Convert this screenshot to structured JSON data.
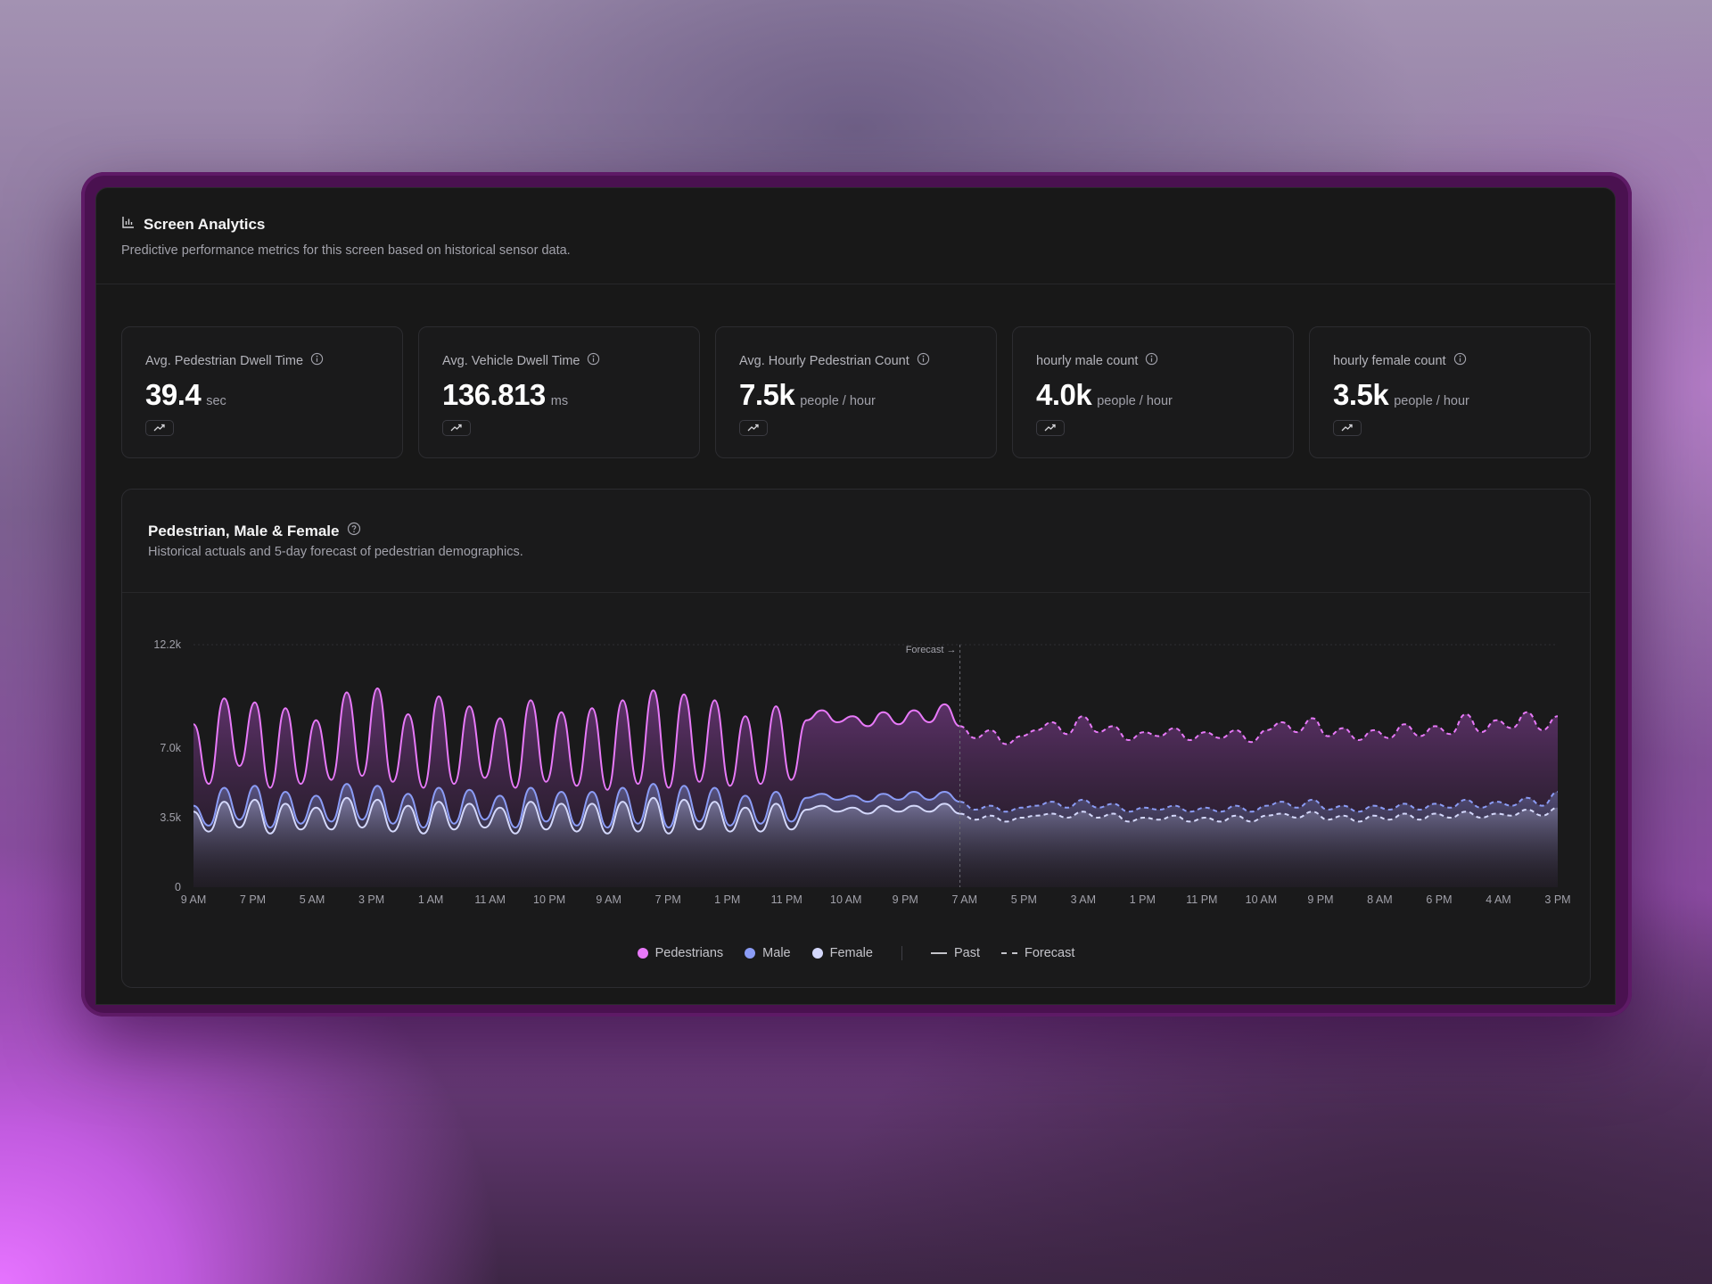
{
  "app": {
    "title": "Screen Analytics",
    "subtitle": "Predictive performance metrics for this screen based on historical sensor data."
  },
  "kpis": [
    {
      "label": "Avg. Pedestrian Dwell Time",
      "value": "39.4",
      "unit": "sec",
      "trend_icon": "trending-up-icon"
    },
    {
      "label": "Avg. Vehicle Dwell Time",
      "value": "136.813",
      "unit": "ms",
      "trend_icon": "trending-up-icon"
    },
    {
      "label": "Avg. Hourly Pedestrian Count",
      "value": "7.5k",
      "unit": "people / hour",
      "trend_icon": "trending-up-icon"
    },
    {
      "label": "hourly male count",
      "value": "4.0k",
      "unit": "people / hour",
      "trend_icon": "trending-up-icon"
    },
    {
      "label": "hourly female count",
      "value": "3.5k",
      "unit": "people / hour",
      "trend_icon": "trending-up-icon"
    }
  ],
  "chart": {
    "title": "Pedestrian, Male & Female",
    "subtitle": "Historical actuals and 5-day forecast of pedestrian demographics.",
    "forecast_marker": "Forecast →",
    "legend": {
      "pedestrians": "Pedestrians",
      "male": "Male",
      "female": "Female",
      "past": "Past",
      "forecast": "Forecast"
    }
  },
  "colors": {
    "pedestrians": "#e879f9",
    "male": "#8b9cf6",
    "female": "#d4d8fb",
    "background": "#181818",
    "card_border": "#2c2c30"
  },
  "chart_data": {
    "type": "area",
    "title": "Pedestrian, Male & Female",
    "ylim": [
      0,
      12200
    ],
    "y_ticks": [
      "0",
      "3.5k",
      "7.0k",
      "12.2k"
    ],
    "x_ticks": [
      "9 AM",
      "7 PM",
      "5 AM",
      "3 PM",
      "1 AM",
      "11 AM",
      "10 PM",
      "9 AM",
      "7 PM",
      "1 PM",
      "11 PM",
      "10 AM",
      "9 PM",
      "7 AM",
      "5 PM",
      "3 AM",
      "1 PM",
      "11 PM",
      "10 AM",
      "9 PM",
      "8 AM",
      "6 PM",
      "4 AM",
      "3 PM"
    ],
    "forecast_start_index": 50,
    "series": [
      {
        "name": "Pedestrians",
        "color": "#e879f9",
        "values": [
          8200,
          5200,
          9500,
          6100,
          9300,
          5000,
          9000,
          5200,
          8400,
          5400,
          9800,
          5600,
          10000,
          5300,
          8700,
          5000,
          9600,
          5200,
          9100,
          5500,
          8500,
          5000,
          9400,
          5300,
          8800,
          5100,
          9000,
          4900,
          9400,
          5200,
          9900,
          5000,
          9700,
          5300,
          9400,
          5100,
          8600,
          5200,
          9100,
          5400,
          8400,
          8900,
          8300,
          8600,
          8100,
          8800,
          8200,
          8900,
          8300,
          9200,
          8100,
          7500,
          7900,
          7200,
          7600,
          7900,
          8300,
          7700,
          8600,
          7800,
          8100,
          7400,
          7800,
          7600,
          8000,
          7400,
          7800,
          7500,
          7900,
          7300,
          7900,
          8300,
          7800,
          8500,
          7600,
          8000,
          7400,
          7900,
          7500,
          8200,
          7600,
          8100,
          7700,
          8700,
          7800,
          8400,
          8000,
          8800,
          7900,
          8600
        ]
      },
      {
        "name": "Male",
        "color": "#8b9cf6",
        "values": [
          4100,
          3100,
          5000,
          3400,
          5100,
          3000,
          4800,
          3200,
          4600,
          3300,
          5200,
          3400,
          5100,
          3200,
          4700,
          3000,
          5000,
          3200,
          4900,
          3400,
          4600,
          3000,
          5000,
          3300,
          4800,
          3100,
          4800,
          3000,
          5000,
          3200,
          5200,
          3000,
          5100,
          3300,
          5000,
          3100,
          4600,
          3200,
          4800,
          3300,
          4500,
          4700,
          4400,
          4600,
          4300,
          4700,
          4400,
          4800,
          4400,
          4800,
          4300,
          3900,
          4100,
          3800,
          4000,
          4100,
          4300,
          4000,
          4400,
          4000,
          4200,
          3800,
          4000,
          3900,
          4100,
          3800,
          4000,
          3800,
          4100,
          3800,
          4100,
          4300,
          4000,
          4400,
          3900,
          4100,
          3800,
          4100,
          3900,
          4200,
          3900,
          4200,
          4000,
          4400,
          4000,
          4300,
          4100,
          4500,
          4100,
          4800
        ]
      },
      {
        "name": "Female",
        "color": "#d4d8fb",
        "values": [
          3800,
          2800,
          4300,
          3000,
          4400,
          2700,
          4200,
          2900,
          4000,
          2900,
          4500,
          3000,
          4400,
          2800,
          4100,
          2700,
          4300,
          2900,
          4200,
          3000,
          4000,
          2700,
          4300,
          2900,
          4200,
          2800,
          4200,
          2700,
          4300,
          2800,
          4500,
          2700,
          4400,
          2900,
          4300,
          2800,
          4000,
          2800,
          4200,
          2900,
          3900,
          4100,
          3800,
          4000,
          3700,
          4100,
          3800,
          4100,
          3800,
          4200,
          3700,
          3400,
          3600,
          3300,
          3500,
          3600,
          3700,
          3500,
          3800,
          3500,
          3700,
          3300,
          3500,
          3400,
          3600,
          3300,
          3500,
          3300,
          3600,
          3300,
          3600,
          3700,
          3500,
          3800,
          3400,
          3600,
          3300,
          3600,
          3400,
          3700,
          3400,
          3700,
          3500,
          3800,
          3500,
          3700,
          3600,
          3900,
          3600,
          4000
        ]
      }
    ],
    "legend_placement": "bottom-center",
    "grid": false
  }
}
